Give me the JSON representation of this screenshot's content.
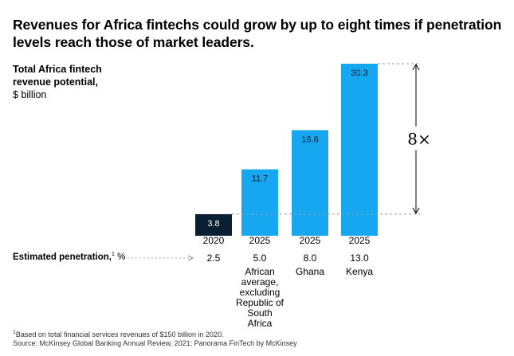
{
  "title": "Revenues for Africa fintechs could grow by up to eight times if penetration levels reach those of market leaders.",
  "ylabel": {
    "bold": "Total Africa fintech revenue potential,",
    "unit": "$ billion"
  },
  "multiplier": "8×",
  "penetration_label": {
    "bold": "Estimated penetration,",
    "sup": "1",
    "unit": " %"
  },
  "footnotes": {
    "note": "Based on total financial services revenues of $150 billion in 2020.",
    "note_marker": "1",
    "source": "Source: McKinsey Global Banking Annual Review, 2021; Panorama FinTech by McKinsey"
  },
  "colors": {
    "bar_2020": "#0b1f33",
    "bar_2025": "#16a7f0",
    "label_dark_bar": "#ffffff",
    "label_light_bar": "#0b1f33"
  },
  "chart_data": {
    "type": "bar",
    "categories": [
      "2020",
      "2025",
      "2025",
      "2025"
    ],
    "values": [
      3.8,
      11.7,
      18.6,
      30.3
    ],
    "value_labels": [
      "3.8",
      "11.7",
      "18.6",
      "30.3"
    ],
    "penetration": [
      "2.5",
      "5.0",
      "8.0",
      "13.0"
    ],
    "sublabels": [
      "",
      "African average, excluding Republic of South Africa",
      "Ghana",
      "Kenya"
    ],
    "ylim": [
      0,
      30.3
    ],
    "grid": false,
    "legend": "none"
  }
}
